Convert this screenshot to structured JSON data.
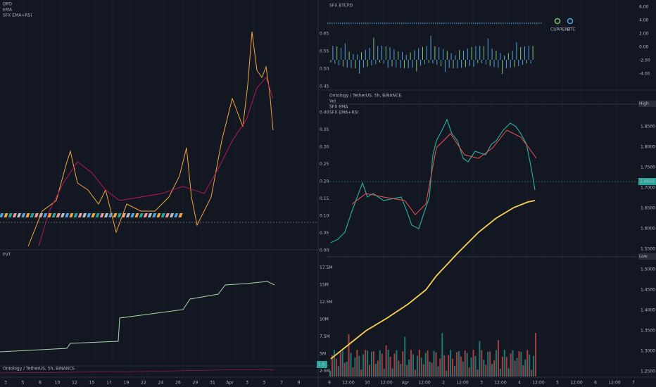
{
  "left_panel": {
    "labels": [
      "DPO",
      "EMA",
      "SFX EMA+RSI"
    ],
    "sub_label": "PVT",
    "mini_label": "Ontology / TetherUS, 5h, BINANCE",
    "price_tag": "1.6..."
  },
  "left_x_axis": [
    "3",
    "5",
    "8",
    "10",
    "12",
    "15",
    "17",
    "19",
    "22",
    "24",
    "26",
    "29",
    "31",
    "Apr",
    "3",
    "5",
    "7",
    "9"
  ],
  "top_right_panel": {
    "label": "SFX BTCPD",
    "right_axis": [
      "6.00",
      "4.00",
      "2.00",
      "0.00",
      "-2.00",
      "-4.00"
    ],
    "left_axis": [
      "0.65",
      "0.55",
      "0.50",
      "0.45"
    ],
    "legend": [
      "CURRENT",
      "BTC"
    ]
  },
  "main_panel": {
    "labels": [
      "Ontology / TetherUS, 5h, BINANCE",
      "Vol",
      "SFX EMA",
      "SFX EMA+RSI"
    ],
    "right_axis": [
      "1.8500",
      "1.8000",
      "1.7500",
      "1.7000",
      "1.6500",
      "1.6000",
      "1.5500",
      "1.5000",
      "1.4500",
      "1.4000",
      "1.3500",
      "1.3000",
      "1.2500"
    ],
    "left_axis": [
      "0.40",
      "0.35",
      "0.30",
      "0.25",
      "0.20",
      "0.15",
      "0.10",
      "0.05",
      "0.00",
      "17.5M",
      "15M",
      "12.5M",
      "10M",
      "7.5M",
      "5M",
      "2.5M"
    ],
    "high_tag": "High",
    "low_tag": "Low",
    "price_tag": "1.6648"
  },
  "right_x_axis": [
    "9",
    "12:00",
    "10",
    "12:00",
    "Apr",
    "12:00",
    "2",
    "12:00",
    "3",
    "12:00",
    "4",
    "12:00",
    "5",
    "12:00",
    "6",
    "12:00",
    "7"
  ]
}
